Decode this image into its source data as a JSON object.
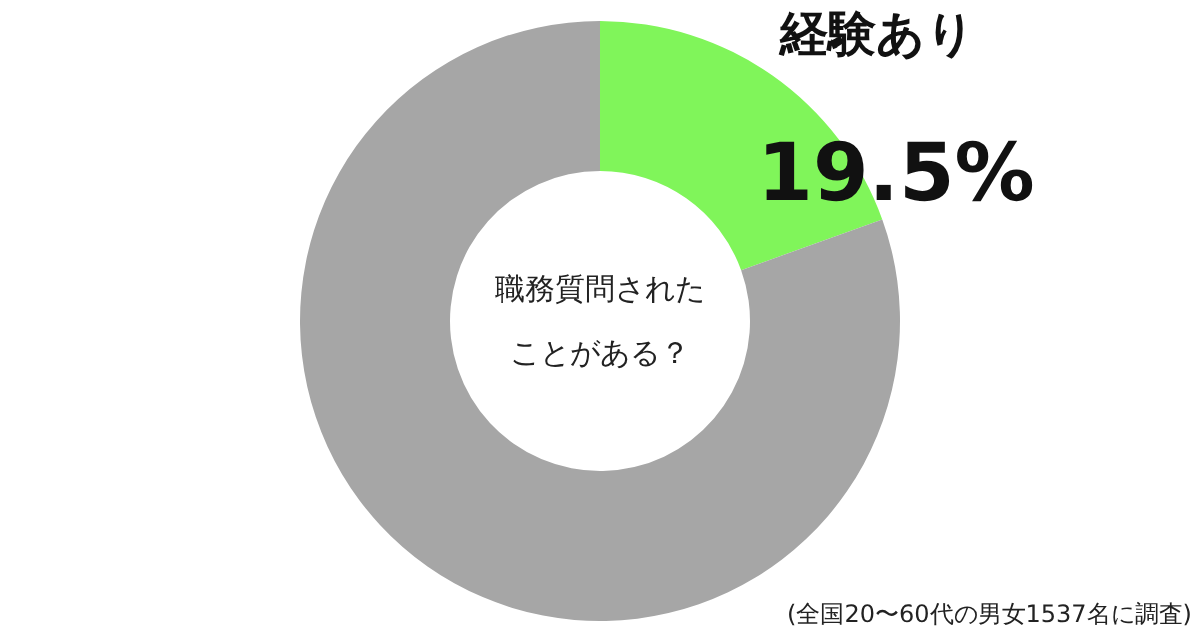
{
  "chart_data": {
    "type": "donut",
    "title": "職務質問されたことがある？",
    "categories": [
      "経験あり",
      null
    ],
    "values": [
      19.5,
      80.5
    ],
    "colors": [
      "#80f55a",
      "#a6a6a6"
    ],
    "value_labels": [
      "19.5%",
      null
    ],
    "annotations": [
      "(全国20〜60代の男女1537名に調査)"
    ]
  }
}
